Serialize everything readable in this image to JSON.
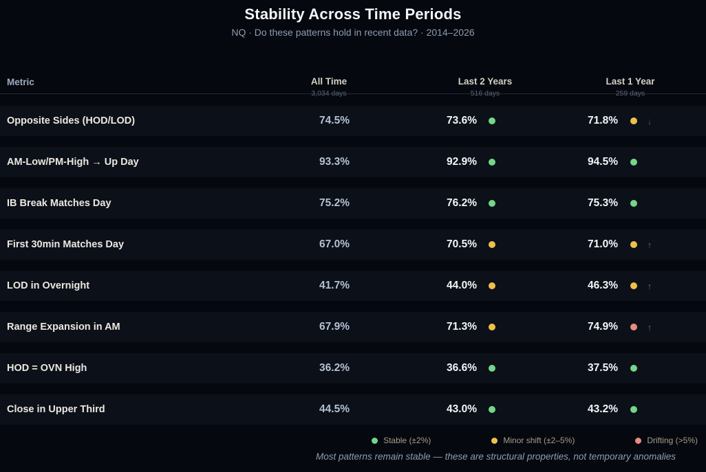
{
  "title": "Stability Across Time Periods",
  "subtitle": "NQ · Do these patterns hold in recent data? · 2014–2026",
  "table": {
    "metric_header": "Metric",
    "columns": [
      {
        "label": "All Time",
        "days": "3,034 days"
      },
      {
        "label": "Last 2 Years",
        "days": "516 days"
      },
      {
        "label": "Last 1 Year",
        "days": "259 days"
      }
    ],
    "rows": [
      {
        "metric": "Opposite Sides (HOD/LOD)",
        "all_time": "74.5%",
        "last_2_years": {
          "value": "73.6%",
          "status": "stable",
          "trend": null
        },
        "last_1_year": {
          "value": "71.8%",
          "status": "minor_shift",
          "trend": "down"
        }
      },
      {
        "metric": "AM-Low/PM-High → Up Day",
        "all_time": "93.3%",
        "last_2_years": {
          "value": "92.9%",
          "status": "stable",
          "trend": null
        },
        "last_1_year": {
          "value": "94.5%",
          "status": "stable",
          "trend": null
        }
      },
      {
        "metric": "IB Break Matches Day",
        "all_time": "75.2%",
        "last_2_years": {
          "value": "76.2%",
          "status": "stable",
          "trend": null
        },
        "last_1_year": {
          "value": "75.3%",
          "status": "stable",
          "trend": null
        }
      },
      {
        "metric": "First 30min Matches Day",
        "all_time": "67.0%",
        "last_2_years": {
          "value": "70.5%",
          "status": "minor_shift",
          "trend": null
        },
        "last_1_year": {
          "value": "71.0%",
          "status": "minor_shift",
          "trend": "up"
        }
      },
      {
        "metric": "LOD in Overnight",
        "all_time": "41.7%",
        "last_2_years": {
          "value": "44.0%",
          "status": "minor_shift",
          "trend": null
        },
        "last_1_year": {
          "value": "46.3%",
          "status": "minor_shift",
          "trend": "up"
        }
      },
      {
        "metric": "Range Expansion in AM",
        "all_time": "67.9%",
        "last_2_years": {
          "value": "71.3%",
          "status": "minor_shift",
          "trend": null
        },
        "last_1_year": {
          "value": "74.9%",
          "status": "drifting",
          "trend": "up"
        }
      },
      {
        "metric": "HOD = OVN High",
        "all_time": "36.2%",
        "last_2_years": {
          "value": "36.6%",
          "status": "stable",
          "trend": null
        },
        "last_1_year": {
          "value": "37.5%",
          "status": "stable",
          "trend": null
        }
      },
      {
        "metric": "Close in Upper Third",
        "all_time": "44.5%",
        "last_2_years": {
          "value": "43.0%",
          "status": "stable",
          "trend": null
        },
        "last_1_year": {
          "value": "43.2%",
          "status": "stable",
          "trend": null
        }
      }
    ]
  },
  "legend": [
    {
      "label": "Stable (±2%)",
      "status": "stable"
    },
    {
      "label": "Minor shift (±2–5%)",
      "status": "minor_shift"
    },
    {
      "label": "Drifting (>5%)",
      "status": "drifting"
    }
  ],
  "footnote": "Most patterns remain stable — these are structural properties, not temporary anomalies",
  "icons": {
    "trend_up": "↑",
    "trend_down": "↓"
  },
  "colors": {
    "stable": "#74d689",
    "minor_shift": "#f0c04b",
    "drifting": "#e98b7f",
    "trend_up": "#55746f",
    "trend_down": "#7a4b1e",
    "row_background": "#0c1018",
    "page_background": "#05080e"
  },
  "chart_data": {
    "type": "table",
    "title": "Stability Across Time Periods",
    "subtitle": "NQ · Do these patterns hold in recent data? · 2014–2026",
    "columns": [
      "Metric",
      "All Time (3,034 days)",
      "Last 2 Years (516 days)",
      "Last 1 Year (259 days)"
    ],
    "legend": [
      "Stable (±2%)",
      "Minor shift (±2–5%)",
      "Drifting (>5%)"
    ],
    "rows": [
      {
        "metric": "Opposite Sides (HOD/LOD)",
        "all_time_pct": 74.5,
        "last_2_years_pct": 73.6,
        "last_2_years_status": "stable",
        "last_1_year_pct": 71.8,
        "last_1_year_status": "minor_shift",
        "last_1_year_trend": "down"
      },
      {
        "metric": "AM-Low/PM-High → Up Day",
        "all_time_pct": 93.3,
        "last_2_years_pct": 92.9,
        "last_2_years_status": "stable",
        "last_1_year_pct": 94.5,
        "last_1_year_status": "stable",
        "last_1_year_trend": null
      },
      {
        "metric": "IB Break Matches Day",
        "all_time_pct": 75.2,
        "last_2_years_pct": 76.2,
        "last_2_years_status": "stable",
        "last_1_year_pct": 75.3,
        "last_1_year_status": "stable",
        "last_1_year_trend": null
      },
      {
        "metric": "First 30min Matches Day",
        "all_time_pct": 67.0,
        "last_2_years_pct": 70.5,
        "last_2_years_status": "minor_shift",
        "last_1_year_pct": 71.0,
        "last_1_year_status": "minor_shift",
        "last_1_year_trend": "up"
      },
      {
        "metric": "LOD in Overnight",
        "all_time_pct": 41.7,
        "last_2_years_pct": 44.0,
        "last_2_years_status": "minor_shift",
        "last_1_year_pct": 46.3,
        "last_1_year_status": "minor_shift",
        "last_1_year_trend": "up"
      },
      {
        "metric": "Range Expansion in AM",
        "all_time_pct": 67.9,
        "last_2_years_pct": 71.3,
        "last_2_years_status": "minor_shift",
        "last_1_year_pct": 74.9,
        "last_1_year_status": "drifting",
        "last_1_year_trend": "up"
      },
      {
        "metric": "HOD = OVN High",
        "all_time_pct": 36.2,
        "last_2_years_pct": 36.6,
        "last_2_years_status": "stable",
        "last_1_year_pct": 37.5,
        "last_1_year_status": "stable",
        "last_1_year_trend": null
      },
      {
        "metric": "Close in Upper Third",
        "all_time_pct": 44.5,
        "last_2_years_pct": 43.0,
        "last_2_years_status": "stable",
        "last_1_year_pct": 43.2,
        "last_1_year_status": "stable",
        "last_1_year_trend": null
      }
    ]
  }
}
